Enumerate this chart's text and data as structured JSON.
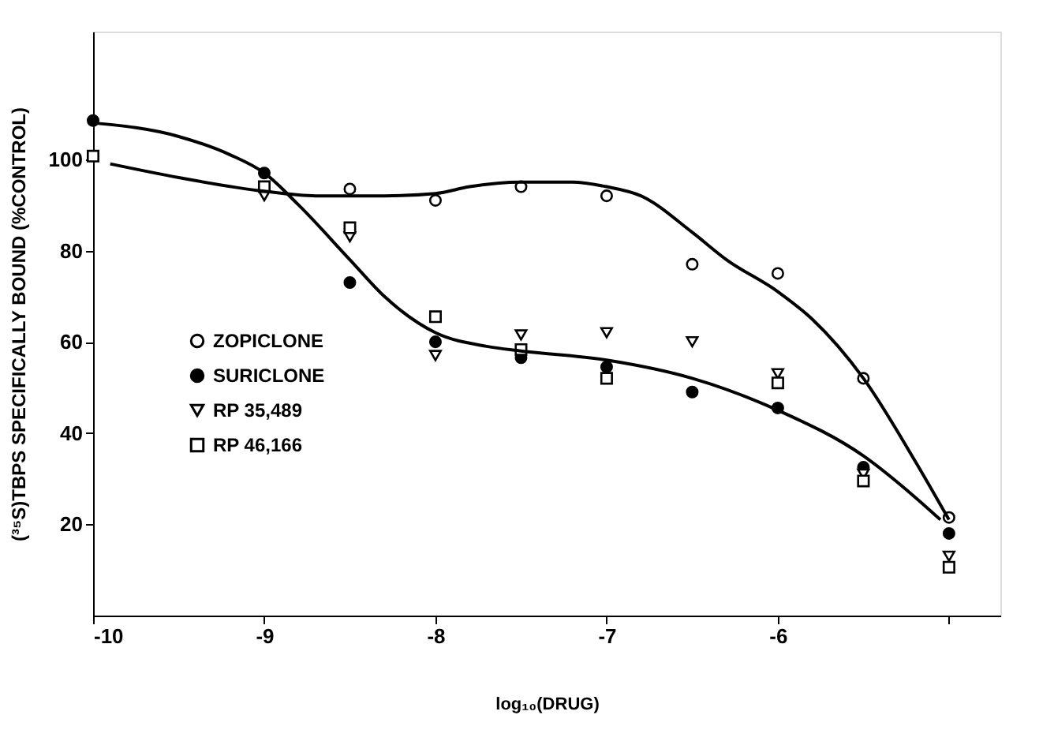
{
  "chart_data": {
    "type": "scatter",
    "xlabel": "log₁₀(DRUG)",
    "ylabel": "(³⁵S)TBPS SPECIFICALLY BOUND (%CONTROL)",
    "x": [
      -10,
      -9,
      -8.5,
      -8,
      -7.5,
      -7,
      -6.5,
      -6,
      -5.5,
      -5
    ],
    "series": [
      {
        "name": "ZOPICLONE",
        "color": "#ffffff",
        "marker": "circle",
        "values": [
          null,
          null,
          93.5,
          91,
          94,
          92,
          77,
          75,
          52,
          21.5
        ]
      },
      {
        "name": "SURICLONE",
        "color": "#000000",
        "marker": "circle",
        "values": [
          108.5,
          97,
          73,
          60,
          56.5,
          54.5,
          49,
          45.5,
          32.5,
          18
        ]
      },
      {
        "name": "RP 35,489",
        "color": "#ffffff",
        "marker": "triangle",
        "values": [
          null,
          92,
          83,
          57,
          61.5,
          62,
          60,
          53,
          31,
          13
        ]
      },
      {
        "name": "RP 46,166",
        "color": "#ffffff",
        "marker": "square",
        "values": [
          100.7,
          94,
          85,
          65.5,
          58.3,
          52,
          null,
          51,
          29.5,
          10.6
        ]
      },
      {
        "type": "line",
        "color": "#000000",
        "x": [
          -9.9,
          -9.5,
          -9,
          -8.7,
          -8.3,
          -8,
          -7.8,
          -7.5,
          -7.2,
          -7,
          -6.8,
          -6.5,
          -6.3,
          -6,
          -5.8,
          -5.5,
          -5.2,
          -5
        ],
        "values": [
          99,
          96,
          93,
          92,
          92,
          92.5,
          94,
          95,
          95,
          94,
          92,
          84,
          78,
          71,
          65,
          52,
          34,
          21
        ]
      },
      {
        "type": "line",
        "color": "#000000",
        "x": [
          -10,
          -9.5,
          -9.2,
          -9,
          -8.8,
          -8.5,
          -8.3,
          -8,
          -7.7,
          -7.5,
          -7,
          -6.5,
          -6,
          -5.5,
          -5.2,
          -5.05
        ],
        "values": [
          108,
          105,
          101,
          97,
          90,
          78,
          70,
          62,
          59,
          58,
          56,
          52,
          45,
          35,
          26,
          21
        ]
      }
    ],
    "xlim": [
      -10,
      -4.7
    ],
    "xticks": [
      -10,
      -9,
      -8,
      -7,
      -6,
      {
        "value": -5,
        "label": null
      }
    ],
    "ylim": [
      0,
      128
    ],
    "yticks": [
      20,
      40,
      60,
      80,
      100
    ],
    "grid": false,
    "legend": "left"
  }
}
